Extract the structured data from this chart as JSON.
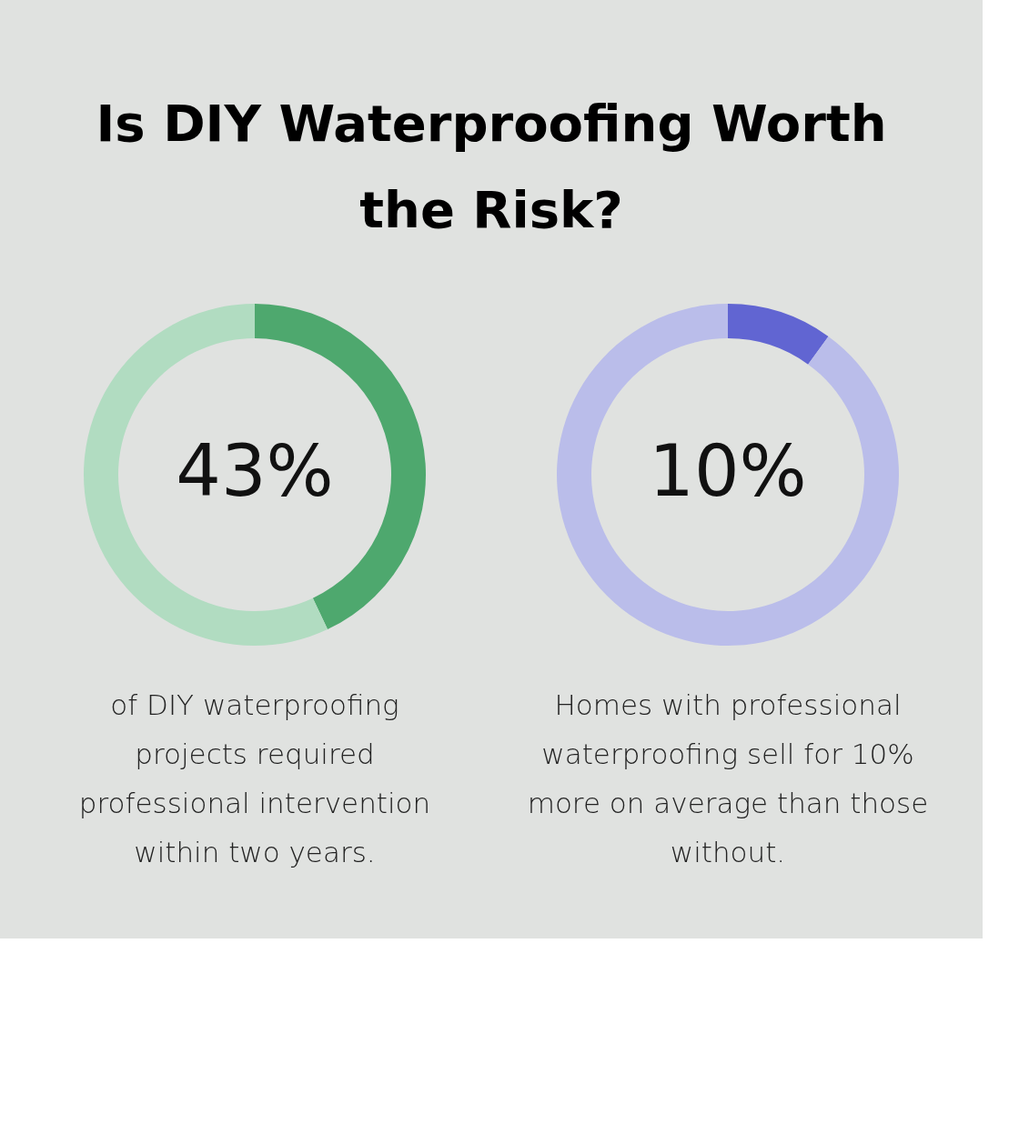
{
  "chart_data": [
    {
      "type": "donut",
      "title": "Is DIY Waterproofing Worth the Risk?",
      "categories": [
        null,
        null
      ],
      "values": [
        43,
        57
      ],
      "colors": [
        "#4ea86e",
        "#b1dcc1"
      ],
      "legend": false,
      "annotations": [
        "43%",
        "of DIY waterproofing projects required professional intervention within two years."
      ]
    },
    {
      "type": "donut",
      "categories": [
        null,
        null
      ],
      "values": [
        10,
        90
      ],
      "colors": [
        "#6165d2",
        "#babdea"
      ],
      "legend": false,
      "annotations": [
        "10%",
        "Homes with professional waterproofing sell for 10% more on average than those without."
      ]
    }
  ]
}
